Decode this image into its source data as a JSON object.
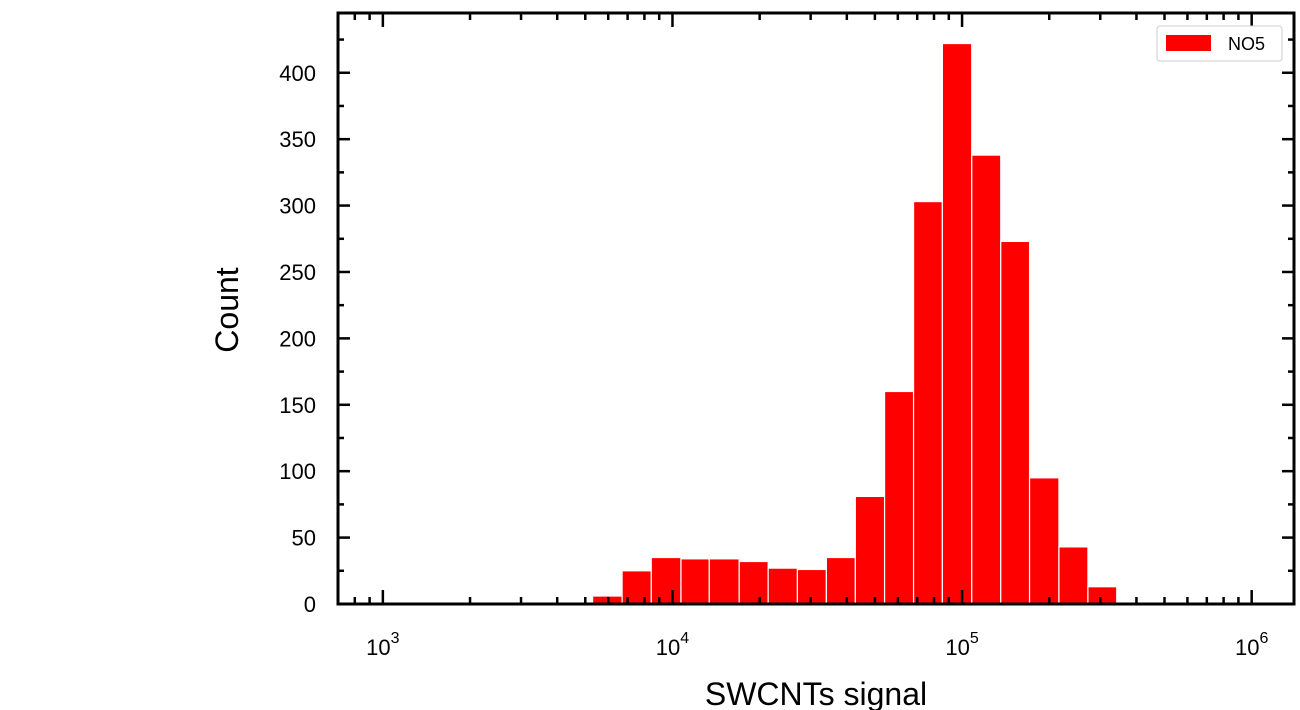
{
  "chart_data": {
    "type": "bar",
    "xlabel": "SWCNTs signal",
    "ylabel": "Count",
    "xscale": "log",
    "xlim": [
      700,
      1400000
    ],
    "ylim": [
      0,
      445
    ],
    "x_tick_labels": [
      {
        "value": 1000,
        "base": "10",
        "exp": "3"
      },
      {
        "value": 10000,
        "base": "10",
        "exp": "4"
      },
      {
        "value": 100000,
        "base": "10",
        "exp": "5"
      },
      {
        "value": 1000000,
        "base": "10",
        "exp": "6"
      }
    ],
    "y_ticks": [
      0,
      50,
      100,
      150,
      200,
      250,
      300,
      350,
      400
    ],
    "legend": {
      "position": "top-right",
      "entries": [
        {
          "name": "NO5",
          "color": "#ff0000"
        }
      ]
    },
    "grid": false,
    "series": [
      {
        "name": "NO5",
        "color": "#ff0000",
        "bins": [
          {
            "x0": 5300,
            "x1": 6700,
            "count": 6
          },
          {
            "x0": 6700,
            "x1": 8450,
            "count": 25
          },
          {
            "x0": 8450,
            "x1": 10700,
            "count": 35
          },
          {
            "x0": 10700,
            "x1": 13400,
            "count": 34
          },
          {
            "x0": 13400,
            "x1": 17000,
            "count": 34
          },
          {
            "x0": 17000,
            "x1": 21400,
            "count": 32
          },
          {
            "x0": 21400,
            "x1": 27000,
            "count": 27
          },
          {
            "x0": 27000,
            "x1": 34000,
            "count": 26
          },
          {
            "x0": 34000,
            "x1": 42800,
            "count": 35
          },
          {
            "x0": 42800,
            "x1": 54000,
            "count": 81
          },
          {
            "x0": 54000,
            "x1": 68000,
            "count": 160
          },
          {
            "x0": 68000,
            "x1": 85500,
            "count": 303
          },
          {
            "x0": 85500,
            "x1": 108000,
            "count": 422
          },
          {
            "x0": 108000,
            "x1": 136000,
            "count": 338
          },
          {
            "x0": 136000,
            "x1": 171000,
            "count": 273
          },
          {
            "x0": 171000,
            "x1": 216000,
            "count": 95
          },
          {
            "x0": 216000,
            "x1": 272000,
            "count": 43
          },
          {
            "x0": 272000,
            "x1": 342000,
            "count": 13
          }
        ]
      }
    ]
  }
}
